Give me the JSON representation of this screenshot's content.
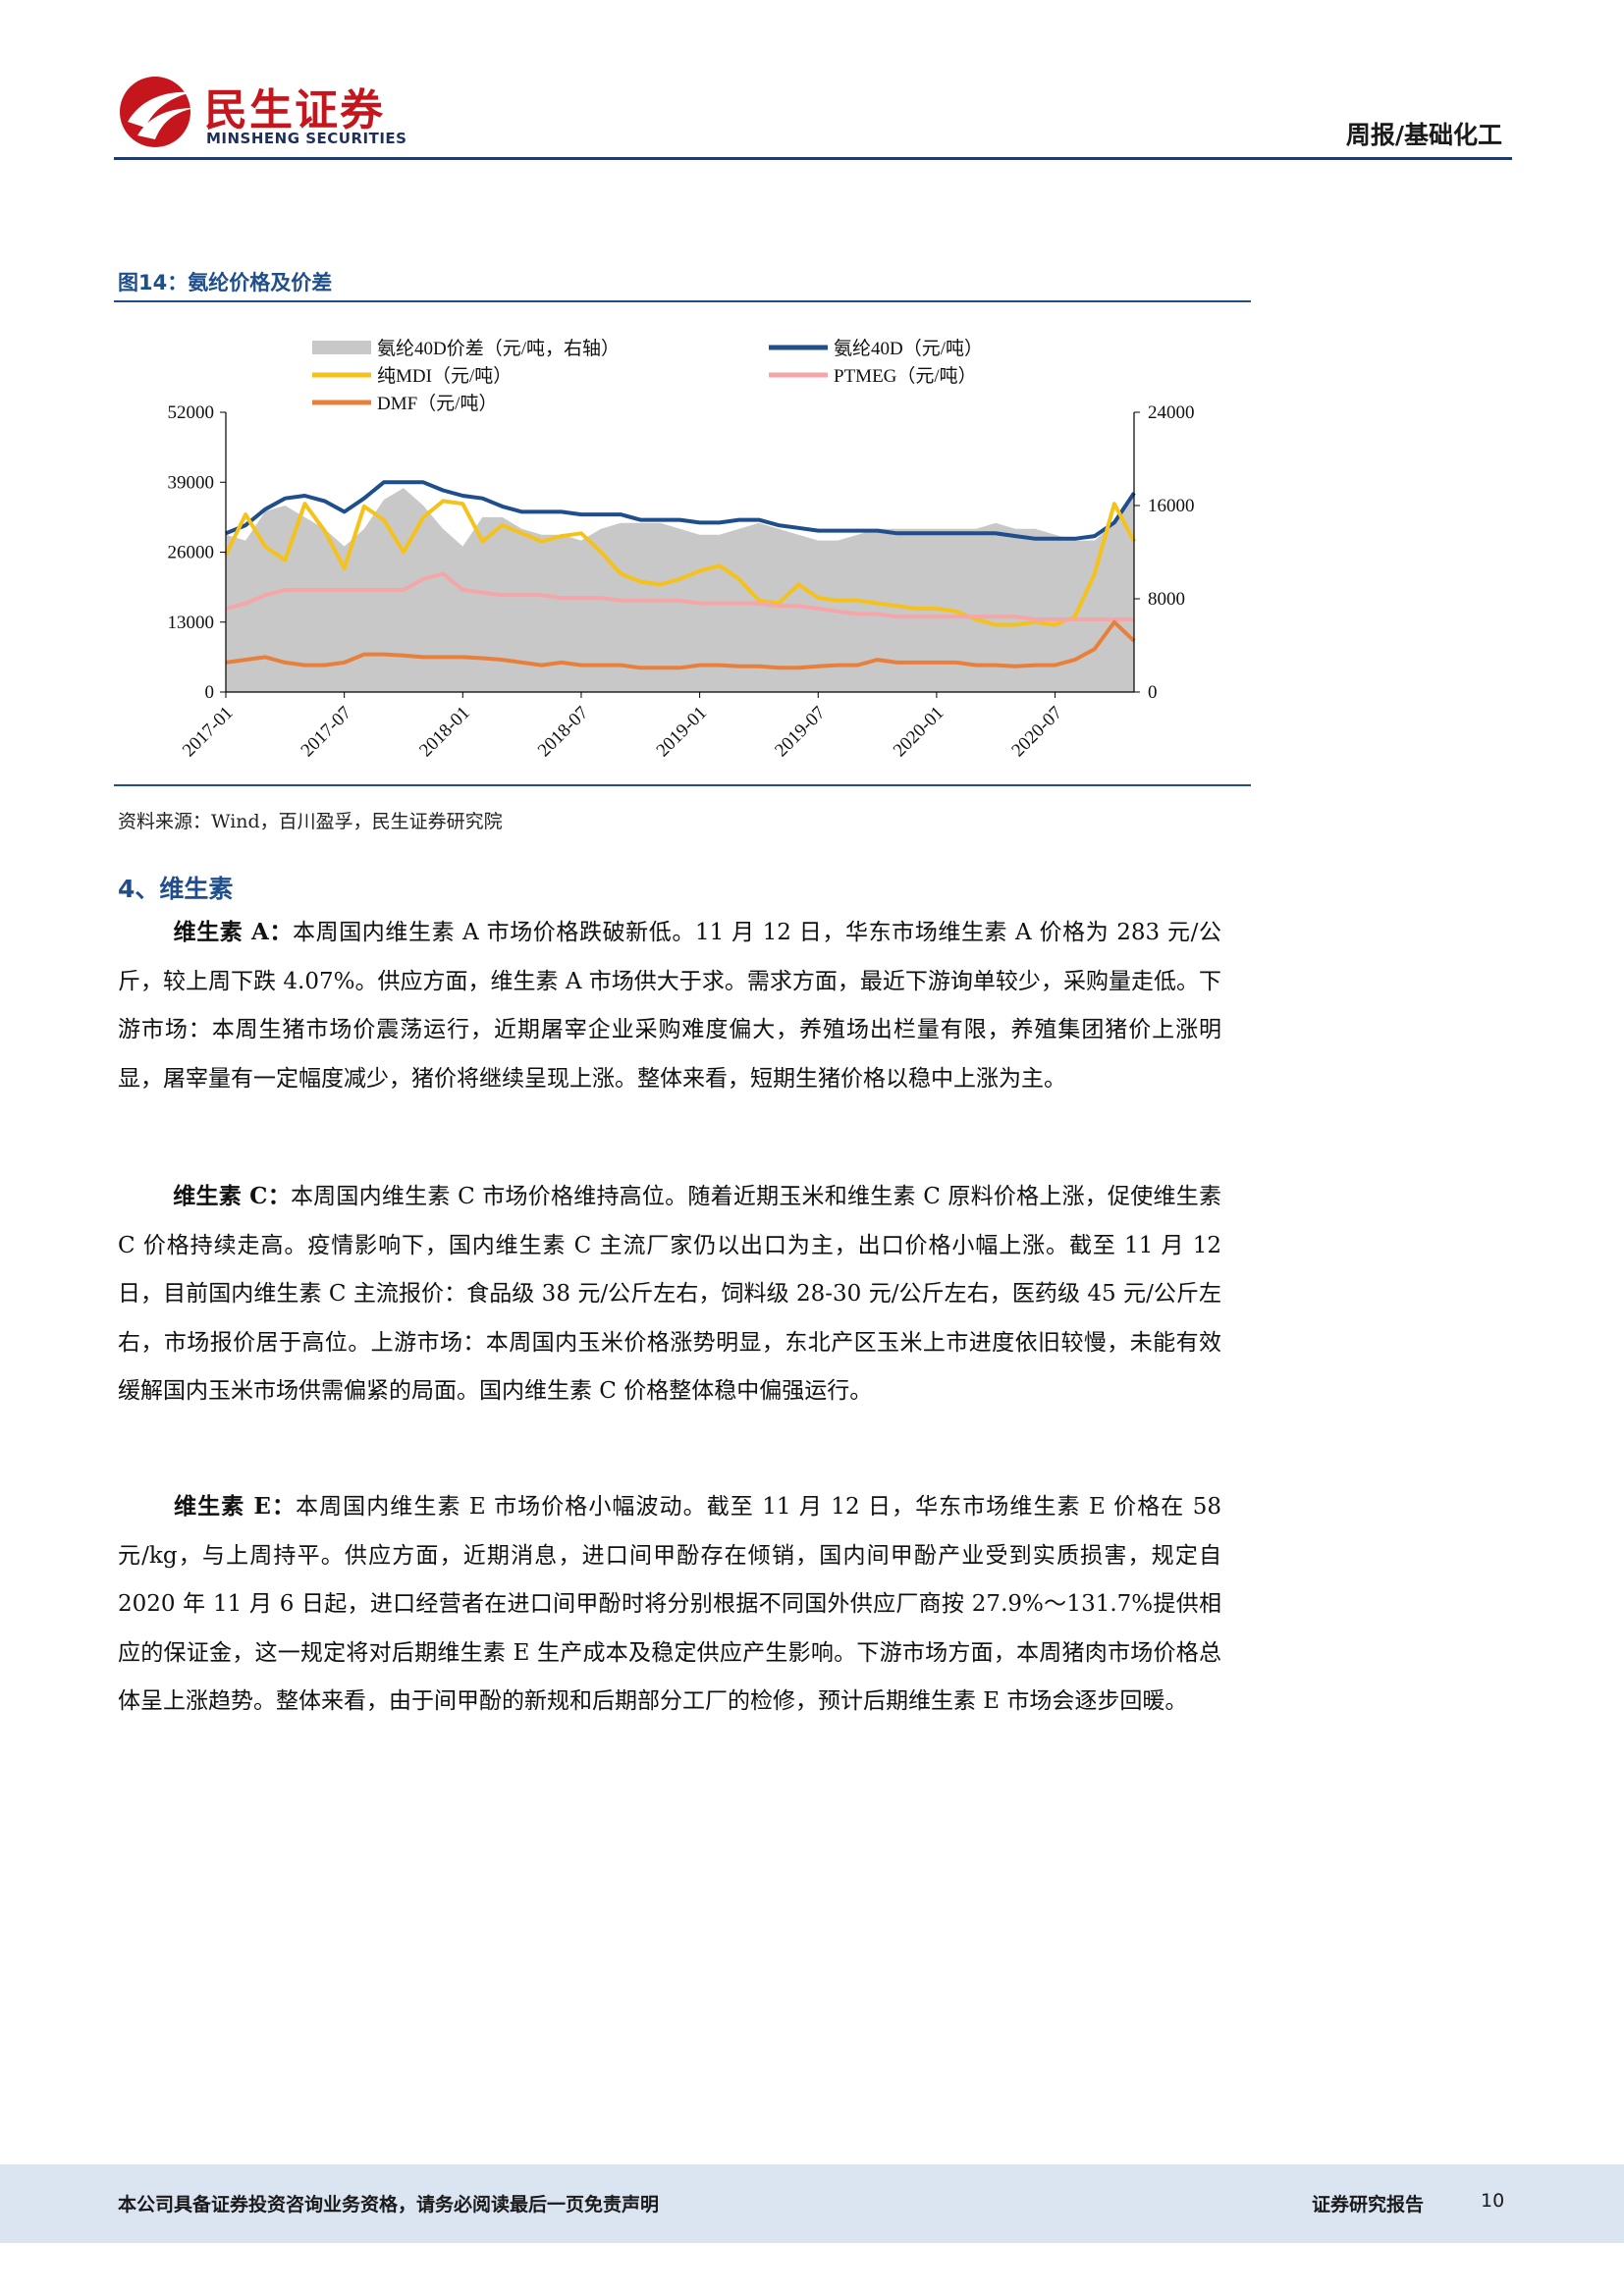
{
  "header": {
    "logo_cn": "民生证券",
    "logo_en": "MINSHENG SECURITIES",
    "report_category": "周报/基础化工",
    "brand_color": "#c4161c",
    "rule_color": "#1f3b6e"
  },
  "figure": {
    "title": "图14：氨纶价格及价差",
    "source": "资料来源：Wind，百川盈孚，民生证券研究院"
  },
  "chart_data": {
    "type": "line",
    "x_ticks": [
      "2017-01",
      "2017-07",
      "2018-01",
      "2018-07",
      "2019-01",
      "2019-07",
      "2020-01",
      "2020-07"
    ],
    "x": [
      "2017-01",
      "2017-02",
      "2017-03",
      "2017-04",
      "2017-05",
      "2017-06",
      "2017-07",
      "2017-08",
      "2017-09",
      "2017-10",
      "2017-11",
      "2017-12",
      "2018-01",
      "2018-02",
      "2018-03",
      "2018-04",
      "2018-05",
      "2018-06",
      "2018-07",
      "2018-08",
      "2018-09",
      "2018-10",
      "2018-11",
      "2018-12",
      "2019-01",
      "2019-02",
      "2019-03",
      "2019-04",
      "2019-05",
      "2019-06",
      "2019-07",
      "2019-08",
      "2019-09",
      "2019-10",
      "2019-11",
      "2019-12",
      "2020-01",
      "2020-02",
      "2020-03",
      "2020-04",
      "2020-05",
      "2020-06",
      "2020-07",
      "2020-08",
      "2020-09",
      "2020-10",
      "2020-11"
    ],
    "left_axis": {
      "min": 0,
      "max": 52000,
      "ticks": [
        0,
        13000,
        26000,
        39000,
        52000
      ]
    },
    "right_axis": {
      "min": 0,
      "max": 24000,
      "ticks": [
        0,
        8000,
        16000,
        24000
      ]
    },
    "legend": [
      {
        "label": "氨纶40D价差（元/吨，右轴）",
        "kind": "area",
        "color": "#c8c8c8"
      },
      {
        "label": "氨纶40D（元/吨）",
        "kind": "line",
        "color": "#1f4e8c"
      },
      {
        "label": "纯MDI（元/吨）",
        "kind": "line",
        "color": "#f5c21b"
      },
      {
        "label": "PTMEG（元/吨）",
        "kind": "line",
        "color": "#f4a6a8"
      },
      {
        "label": "DMF（元/吨）",
        "kind": "line",
        "color": "#e8803c"
      }
    ],
    "series": [
      {
        "name": "氨纶40D（元/吨）",
        "axis": "left",
        "color": "#1f4e8c",
        "values": [
          29500,
          31000,
          34000,
          36000,
          36500,
          35500,
          33500,
          36000,
          39000,
          39000,
          39000,
          37500,
          36500,
          36000,
          34500,
          33500,
          33500,
          33500,
          33000,
          33000,
          33000,
          32000,
          32000,
          32000,
          31500,
          31500,
          32000,
          32000,
          31000,
          30500,
          30000,
          30000,
          30000,
          30000,
          29500,
          29500,
          29500,
          29500,
          29500,
          29500,
          29000,
          28500,
          28500,
          28500,
          29000,
          31500,
          37000
        ]
      },
      {
        "name": "纯MDI（元/吨）",
        "axis": "left",
        "color": "#f5c21b",
        "values": [
          25500,
          33000,
          27000,
          24500,
          35000,
          30000,
          23000,
          34500,
          32000,
          26000,
          32500,
          35500,
          35000,
          28000,
          31000,
          29500,
          28000,
          29000,
          29500,
          26000,
          22000,
          20500,
          20000,
          21000,
          22500,
          23500,
          21000,
          17000,
          16500,
          20000,
          17500,
          17000,
          17000,
          16500,
          16000,
          15500,
          15500,
          15000,
          13500,
          12500,
          12500,
          13000,
          12500,
          14000,
          22000,
          35000,
          28000
        ]
      },
      {
        "name": "PTMEG（元/吨）",
        "axis": "left",
        "color": "#f4a6a8",
        "values": [
          15500,
          16500,
          18000,
          19000,
          19000,
          19000,
          19000,
          19000,
          19000,
          19000,
          21000,
          22000,
          19000,
          18500,
          18000,
          18000,
          18000,
          17500,
          17500,
          17500,
          17000,
          17000,
          17000,
          17000,
          16500,
          16500,
          16500,
          16500,
          16000,
          16000,
          15500,
          15000,
          14500,
          14500,
          14000,
          14000,
          14000,
          14000,
          14000,
          14000,
          14000,
          13500,
          13500,
          13500,
          13500,
          13500,
          13500
        ]
      },
      {
        "name": "DMF（元/吨）",
        "axis": "left",
        "color": "#e8803c",
        "values": [
          5500,
          6000,
          6500,
          5500,
          5000,
          5000,
          5500,
          7000,
          7000,
          6800,
          6500,
          6500,
          6500,
          6300,
          6000,
          5500,
          5000,
          5500,
          5000,
          5000,
          5000,
          4500,
          4500,
          4500,
          5000,
          5000,
          4800,
          4800,
          4500,
          4500,
          4800,
          5000,
          5000,
          6000,
          5500,
          5500,
          5500,
          5500,
          5000,
          5000,
          4800,
          5000,
          5000,
          6000,
          8000,
          13000,
          9500
        ]
      },
      {
        "name": "氨纶40D价差（元/吨，右轴）",
        "axis": "right",
        "color": "#c8c8c8",
        "values": [
          13500,
          13000,
          15500,
          16000,
          15000,
          14000,
          12500,
          14000,
          16500,
          17500,
          16000,
          14000,
          12500,
          15000,
          15000,
          14000,
          13500,
          13500,
          13000,
          14000,
          14500,
          14500,
          14500,
          14000,
          13500,
          13500,
          14000,
          14500,
          14000,
          13500,
          13000,
          13000,
          13500,
          14000,
          14000,
          14000,
          14000,
          14000,
          14000,
          14500,
          14000,
          14000,
          13500,
          13000,
          13000,
          14500,
          17000
        ]
      }
    ]
  },
  "section": {
    "title": "4、维生素"
  },
  "paragraphs": [
    {
      "lead": "维生素 A：",
      "text": "本周国内维生素 A 市场价格跌破新低。11 月 12 日，华东市场维生素 A 价格为 283 元/公斤，较上周下跌 4.07%。供应方面，维生素 A 市场供大于求。需求方面，最近下游询单较少，采购量走低。下游市场：本周生猪市场价震荡运行，近期屠宰企业采购难度偏大，养殖场出栏量有限，养殖集团猪价上涨明显，屠宰量有一定幅度减少，猪价将继续呈现上涨。整体来看，短期生猪价格以稳中上涨为主。"
    },
    {
      "lead": "维生素 C：",
      "text": "本周国内维生素 C 市场价格维持高位。随着近期玉米和维生素 C 原料价格上涨，促使维生素 C 价格持续走高。疫情影响下，国内维生素 C 主流厂家仍以出口为主，出口价格小幅上涨。截至 11 月 12 日，目前国内维生素 C 主流报价：食品级 38 元/公斤左右，饲料级 28-30 元/公斤左右，医药级 45 元/公斤左右，市场报价居于高位。上游市场：本周国内玉米价格涨势明显，东北产区玉米上市进度依旧较慢，未能有效缓解国内玉米市场供需偏紧的局面。国内维生素 C 价格整体稳中偏强运行。"
    },
    {
      "lead": "维生素 E：",
      "text": "本周国内维生素 E 市场价格小幅波动。截至 11 月 12 日，华东市场维生素 E 价格在 58 元/kg，与上周持平。供应方面，近期消息，进口间甲酚存在倾销，国内间甲酚产业受到实质损害，规定自 2020 年 11 月 6 日起，进口经营者在进口间甲酚时将分别根据不同国外供应厂商按 27.9%～131.7%提供相应的保证金，这一规定将对后期维生素 E 生产成本及稳定供应产生影响。下游市场方面，本周猪肉市场价格总体呈上涨趋势。整体来看，由于间甲酚的新规和后期部分工厂的检修，预计后期维生素 E 市场会逐步回暖。"
    }
  ],
  "footer": {
    "disclaimer": "本公司具备证券投资咨询业务资格，请务必阅读最后一页免责声明",
    "report_type": "证券研究报告",
    "page": "10"
  }
}
